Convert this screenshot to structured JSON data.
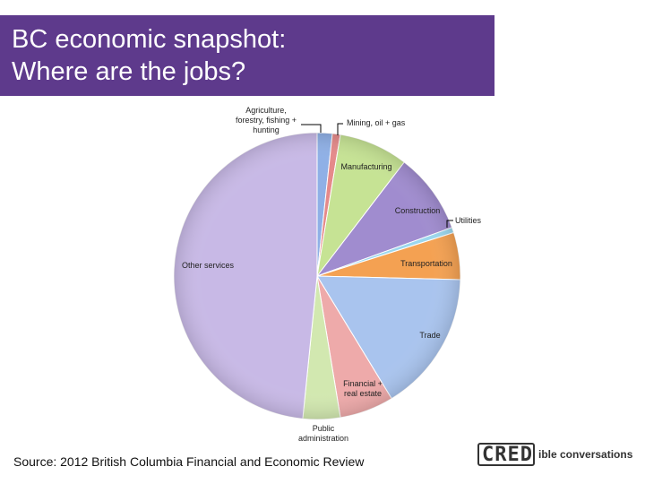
{
  "title": {
    "line1": "BC economic snapshot:",
    "line2": "Where are the jobs?"
  },
  "source": "Source: 2012 British Columbia Financial and Economic Review",
  "logo": {
    "box_text": "CRED",
    "rest_text": "ible conversations"
  },
  "chart_data": {
    "type": "pie",
    "title": "",
    "start": "12 o'clock",
    "direction": "clockwise",
    "legend": "none",
    "slices": [
      {
        "label": [
          "Agriculture,",
          "forestry, fishing +",
          "hunting"
        ],
        "value": 1.7,
        "color": "#8fb0e6"
      },
      {
        "label": [
          "Mining, oil + gas"
        ],
        "value": 0.9,
        "color": "#e58a8a"
      },
      {
        "label": [
          "Manufacturing"
        ],
        "value": 7.8,
        "color": "#c6e394"
      },
      {
        "label": [
          "Construction"
        ],
        "value": 9.1,
        "color": "#a08ccf"
      },
      {
        "label": [
          "Utilities"
        ],
        "value": 0.6,
        "color": "#9bd7ee"
      },
      {
        "label": [
          "Transportation"
        ],
        "value": 5.3,
        "color": "#f4a152"
      },
      {
        "label": [
          "Trade"
        ],
        "value": 15.9,
        "color": "#a9c4ee"
      },
      {
        "label": [
          "Financial +",
          "real estate"
        ],
        "value": 6.1,
        "color": "#eeaaaa"
      },
      {
        "label": [
          "Public",
          "administration"
        ],
        "value": 4.2,
        "color": "#d2e8b0"
      },
      {
        "label": [
          "Other services"
        ],
        "value": 48.4,
        "color": "#c8b9e6"
      }
    ]
  }
}
